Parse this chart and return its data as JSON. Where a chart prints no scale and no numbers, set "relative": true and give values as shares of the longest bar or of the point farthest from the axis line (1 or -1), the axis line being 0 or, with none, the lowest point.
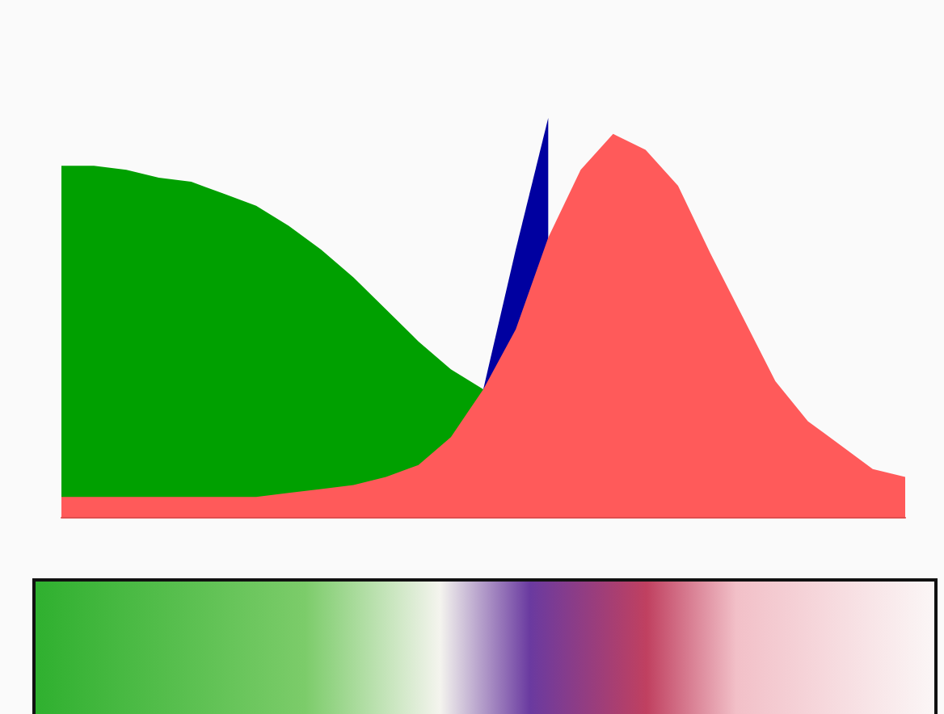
{
  "chart_data": {
    "type": "area",
    "relative": true,
    "categories": [
      null,
      null,
      null,
      null,
      null,
      null,
      null,
      null,
      null,
      null,
      null,
      null,
      null,
      null,
      null,
      null,
      null,
      null,
      null,
      null,
      null,
      null,
      null,
      null,
      null,
      null,
      null
    ],
    "series": [
      {
        "color": "#00a000",
        "values": [
          0.88,
          0.88,
          0.87,
          0.85,
          0.84,
          0.81,
          0.78,
          0.73,
          0.67,
          0.6,
          0.52,
          0.44,
          0.37,
          0.32,
          null,
          null,
          null,
          null,
          null,
          null,
          null,
          null,
          null,
          null,
          null,
          null,
          null
        ]
      },
      {
        "color": "#0000a0",
        "values": [
          null,
          null,
          null,
          null,
          null,
          null,
          null,
          null,
          null,
          null,
          null,
          null,
          null,
          0.32,
          0.67,
          1.0,
          null,
          null,
          null,
          null,
          null,
          null,
          null,
          null,
          null,
          null,
          null
        ]
      },
      {
        "color": "#ff5a5a",
        "values": [
          0.05,
          0.05,
          0.05,
          0.05,
          0.05,
          0.05,
          0.05,
          0.06,
          0.07,
          0.08,
          0.1,
          0.13,
          0.2,
          0.32,
          0.47,
          0.7,
          0.87,
          0.96,
          0.92,
          0.83,
          0.66,
          0.5,
          0.34,
          0.24,
          0.18,
          0.12,
          0.1
        ]
      }
    ]
  }
}
